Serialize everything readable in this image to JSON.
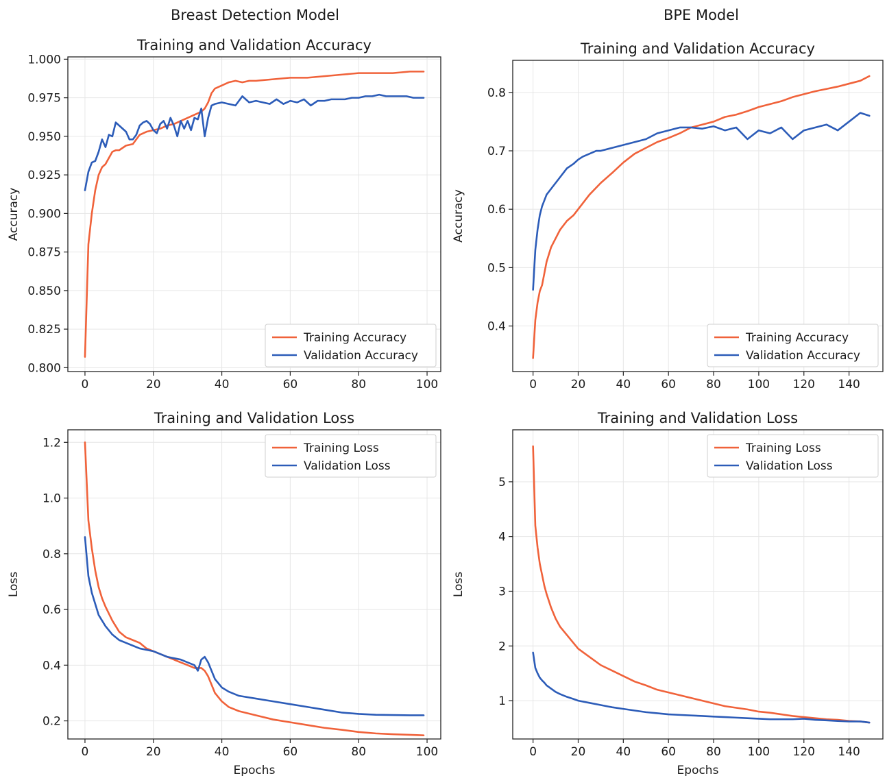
{
  "columns": [
    {
      "title": "Breast Detection Model"
    },
    {
      "title": "BPE Model"
    }
  ],
  "chart_data": [
    {
      "type": "line",
      "title": "Training and Validation Accuracy",
      "xlabel": "",
      "ylabel": "Accuracy",
      "xlim": [
        -5,
        104
      ],
      "ylim": [
        0.7975,
        1.0015
      ],
      "xticks": [
        0,
        20,
        40,
        60,
        80,
        100
      ],
      "yticks": [
        0.8,
        0.825,
        0.85,
        0.875,
        0.9,
        0.925,
        0.95,
        0.975,
        1.0
      ],
      "ytick_format": 3,
      "grid": true,
      "legend_position": "lower-right",
      "series": [
        {
          "name": "Training Accuracy",
          "color": "#f0623a",
          "x": [
            0,
            1,
            2,
            3,
            4,
            5,
            6,
            7,
            8,
            9,
            10,
            12,
            14,
            16,
            18,
            20,
            22,
            24,
            26,
            28,
            30,
            32,
            34,
            35,
            36,
            37,
            38,
            40,
            42,
            44,
            46,
            48,
            50,
            55,
            60,
            65,
            70,
            75,
            80,
            85,
            90,
            95,
            99
          ],
          "y": [
            0.807,
            0.88,
            0.9,
            0.915,
            0.925,
            0.93,
            0.932,
            0.936,
            0.94,
            0.941,
            0.941,
            0.944,
            0.945,
            0.951,
            0.953,
            0.954,
            0.955,
            0.957,
            0.958,
            0.96,
            0.962,
            0.964,
            0.966,
            0.968,
            0.972,
            0.978,
            0.981,
            0.983,
            0.985,
            0.986,
            0.985,
            0.986,
            0.986,
            0.987,
            0.988,
            0.988,
            0.989,
            0.99,
            0.991,
            0.991,
            0.991,
            0.992,
            0.992
          ]
        },
        {
          "name": "Validation Accuracy",
          "color": "#2c5cb8",
          "x": [
            0,
            1,
            2,
            3,
            4,
            5,
            6,
            7,
            8,
            9,
            10,
            11,
            12,
            13,
            14,
            15,
            16,
            17,
            18,
            19,
            20,
            21,
            22,
            23,
            24,
            25,
            26,
            27,
            28,
            29,
            30,
            31,
            32,
            33,
            34,
            35,
            36,
            37,
            38,
            40,
            42,
            44,
            46,
            48,
            50,
            52,
            54,
            56,
            58,
            60,
            62,
            64,
            66,
            68,
            70,
            72,
            74,
            76,
            78,
            80,
            82,
            84,
            86,
            88,
            90,
            92,
            94,
            96,
            99
          ],
          "y": [
            0.915,
            0.927,
            0.933,
            0.934,
            0.94,
            0.948,
            0.943,
            0.951,
            0.95,
            0.959,
            0.957,
            0.955,
            0.953,
            0.948,
            0.948,
            0.951,
            0.957,
            0.959,
            0.96,
            0.958,
            0.954,
            0.952,
            0.958,
            0.96,
            0.955,
            0.962,
            0.957,
            0.95,
            0.96,
            0.955,
            0.96,
            0.954,
            0.962,
            0.961,
            0.968,
            0.95,
            0.962,
            0.97,
            0.971,
            0.972,
            0.971,
            0.97,
            0.976,
            0.972,
            0.973,
            0.972,
            0.971,
            0.974,
            0.971,
            0.973,
            0.972,
            0.974,
            0.97,
            0.973,
            0.973,
            0.974,
            0.974,
            0.974,
            0.975,
            0.975,
            0.976,
            0.976,
            0.977,
            0.976,
            0.976,
            0.976,
            0.976,
            0.975,
            0.975
          ]
        }
      ]
    },
    {
      "type": "line",
      "title": "Training and Validation Accuracy",
      "xlabel": "",
      "ylabel": "Accuracy",
      "xlim": [
        -9,
        155
      ],
      "ylim": [
        0.322,
        0.855
      ],
      "xticks": [
        0,
        20,
        40,
        60,
        80,
        100,
        120,
        140
      ],
      "yticks": [
        0.4,
        0.5,
        0.6,
        0.7,
        0.8
      ],
      "ytick_format": 1,
      "grid": true,
      "legend_position": "lower-right",
      "series": [
        {
          "name": "Training Accuracy",
          "color": "#f0623a",
          "x": [
            0,
            1,
            2,
            3,
            4,
            5,
            6,
            8,
            10,
            12,
            15,
            18,
            20,
            25,
            30,
            35,
            40,
            45,
            50,
            55,
            60,
            65,
            70,
            75,
            80,
            85,
            90,
            95,
            100,
            105,
            110,
            115,
            120,
            125,
            130,
            135,
            140,
            145,
            149
          ],
          "y": [
            0.345,
            0.41,
            0.44,
            0.46,
            0.47,
            0.49,
            0.51,
            0.535,
            0.55,
            0.565,
            0.58,
            0.59,
            0.6,
            0.625,
            0.645,
            0.662,
            0.68,
            0.695,
            0.705,
            0.715,
            0.722,
            0.73,
            0.74,
            0.745,
            0.75,
            0.758,
            0.762,
            0.768,
            0.775,
            0.78,
            0.785,
            0.792,
            0.797,
            0.802,
            0.806,
            0.81,
            0.815,
            0.82,
            0.828
          ]
        },
        {
          "name": "Validation Accuracy",
          "color": "#2c5cb8",
          "x": [
            0,
            1,
            2,
            3,
            4,
            5,
            6,
            8,
            10,
            12,
            15,
            18,
            20,
            22,
            25,
            28,
            30,
            35,
            40,
            45,
            50,
            55,
            60,
            65,
            70,
            75,
            80,
            85,
            90,
            95,
            100,
            105,
            110,
            115,
            120,
            125,
            130,
            135,
            140,
            145,
            149
          ],
          "y": [
            0.462,
            0.53,
            0.565,
            0.59,
            0.605,
            0.615,
            0.625,
            0.635,
            0.645,
            0.655,
            0.67,
            0.678,
            0.685,
            0.69,
            0.695,
            0.7,
            0.7,
            0.705,
            0.71,
            0.715,
            0.72,
            0.73,
            0.735,
            0.74,
            0.74,
            0.738,
            0.742,
            0.735,
            0.74,
            0.72,
            0.735,
            0.73,
            0.74,
            0.72,
            0.735,
            0.74,
            0.745,
            0.735,
            0.75,
            0.765,
            0.76
          ]
        }
      ]
    },
    {
      "type": "line",
      "title": "Training and Validation Loss",
      "xlabel": "Epochs",
      "ylabel": "Loss",
      "xlim": [
        -5,
        104
      ],
      "ylim": [
        0.135,
        1.245
      ],
      "xticks": [
        0,
        20,
        40,
        60,
        80,
        100
      ],
      "yticks": [
        0.2,
        0.4,
        0.6,
        0.8,
        1.0,
        1.2
      ],
      "ytick_format": 1,
      "grid": true,
      "legend_position": "upper-right",
      "series": [
        {
          "name": "Training Loss",
          "color": "#f0623a",
          "x": [
            0,
            1,
            2,
            3,
            4,
            5,
            6,
            8,
            10,
            12,
            14,
            16,
            18,
            20,
            22,
            24,
            26,
            28,
            30,
            32,
            34,
            35,
            36,
            37,
            38,
            40,
            42,
            45,
            50,
            55,
            60,
            65,
            70,
            75,
            80,
            85,
            90,
            95,
            99
          ],
          "y": [
            1.2,
            0.92,
            0.82,
            0.74,
            0.68,
            0.64,
            0.61,
            0.56,
            0.52,
            0.5,
            0.49,
            0.48,
            0.46,
            0.45,
            0.44,
            0.43,
            0.42,
            0.41,
            0.4,
            0.39,
            0.39,
            0.38,
            0.36,
            0.33,
            0.3,
            0.27,
            0.25,
            0.235,
            0.22,
            0.205,
            0.195,
            0.185,
            0.175,
            0.168,
            0.16,
            0.155,
            0.152,
            0.15,
            0.148
          ]
        },
        {
          "name": "Validation Loss",
          "color": "#2c5cb8",
          "x": [
            0,
            1,
            2,
            3,
            4,
            5,
            6,
            8,
            10,
            12,
            14,
            16,
            18,
            20,
            22,
            24,
            26,
            28,
            30,
            32,
            33,
            34,
            35,
            36,
            37,
            38,
            40,
            42,
            45,
            50,
            55,
            60,
            65,
            70,
            75,
            80,
            85,
            90,
            95,
            99
          ],
          "y": [
            0.86,
            0.72,
            0.66,
            0.62,
            0.58,
            0.56,
            0.54,
            0.51,
            0.49,
            0.48,
            0.47,
            0.46,
            0.455,
            0.45,
            0.44,
            0.43,
            0.425,
            0.42,
            0.41,
            0.4,
            0.38,
            0.42,
            0.43,
            0.41,
            0.38,
            0.35,
            0.32,
            0.305,
            0.29,
            0.28,
            0.27,
            0.26,
            0.25,
            0.24,
            0.23,
            0.225,
            0.222,
            0.221,
            0.22,
            0.22
          ]
        }
      ]
    },
    {
      "type": "line",
      "title": "Training and Validation Loss",
      "xlabel": "Epochs",
      "ylabel": "Loss",
      "xlim": [
        -9,
        155
      ],
      "ylim": [
        0.3,
        5.95
      ],
      "xticks": [
        0,
        20,
        40,
        60,
        80,
        100,
        120,
        140
      ],
      "yticks": [
        1,
        2,
        3,
        4,
        5
      ],
      "ytick_format": 0,
      "grid": true,
      "legend_position": "upper-right",
      "series": [
        {
          "name": "Training Loss",
          "color": "#f0623a",
          "x": [
            0,
            1,
            2,
            3,
            4,
            5,
            6,
            8,
            10,
            12,
            15,
            18,
            20,
            25,
            30,
            35,
            40,
            45,
            50,
            55,
            60,
            65,
            70,
            75,
            80,
            85,
            90,
            95,
            100,
            105,
            110,
            115,
            120,
            125,
            130,
            135,
            140,
            145,
            149
          ],
          "y": [
            5.65,
            4.2,
            3.8,
            3.5,
            3.3,
            3.1,
            2.95,
            2.7,
            2.5,
            2.35,
            2.2,
            2.05,
            1.95,
            1.8,
            1.65,
            1.55,
            1.45,
            1.35,
            1.28,
            1.2,
            1.15,
            1.1,
            1.05,
            1.0,
            0.95,
            0.9,
            0.87,
            0.84,
            0.8,
            0.78,
            0.75,
            0.72,
            0.7,
            0.68,
            0.66,
            0.65,
            0.63,
            0.62,
            0.6
          ]
        },
        {
          "name": "Validation Loss",
          "color": "#2c5cb8",
          "x": [
            0,
            1,
            2,
            3,
            4,
            5,
            6,
            8,
            10,
            12,
            15,
            18,
            20,
            25,
            30,
            35,
            40,
            45,
            50,
            55,
            60,
            65,
            70,
            75,
            80,
            85,
            90,
            95,
            100,
            105,
            110,
            115,
            120,
            125,
            130,
            135,
            140,
            145,
            149
          ],
          "y": [
            1.88,
            1.6,
            1.5,
            1.42,
            1.37,
            1.33,
            1.28,
            1.22,
            1.16,
            1.12,
            1.07,
            1.03,
            1.0,
            0.96,
            0.92,
            0.88,
            0.85,
            0.82,
            0.79,
            0.77,
            0.75,
            0.74,
            0.73,
            0.72,
            0.71,
            0.7,
            0.69,
            0.68,
            0.67,
            0.66,
            0.66,
            0.66,
            0.67,
            0.65,
            0.64,
            0.63,
            0.62,
            0.62,
            0.6
          ]
        }
      ]
    }
  ]
}
